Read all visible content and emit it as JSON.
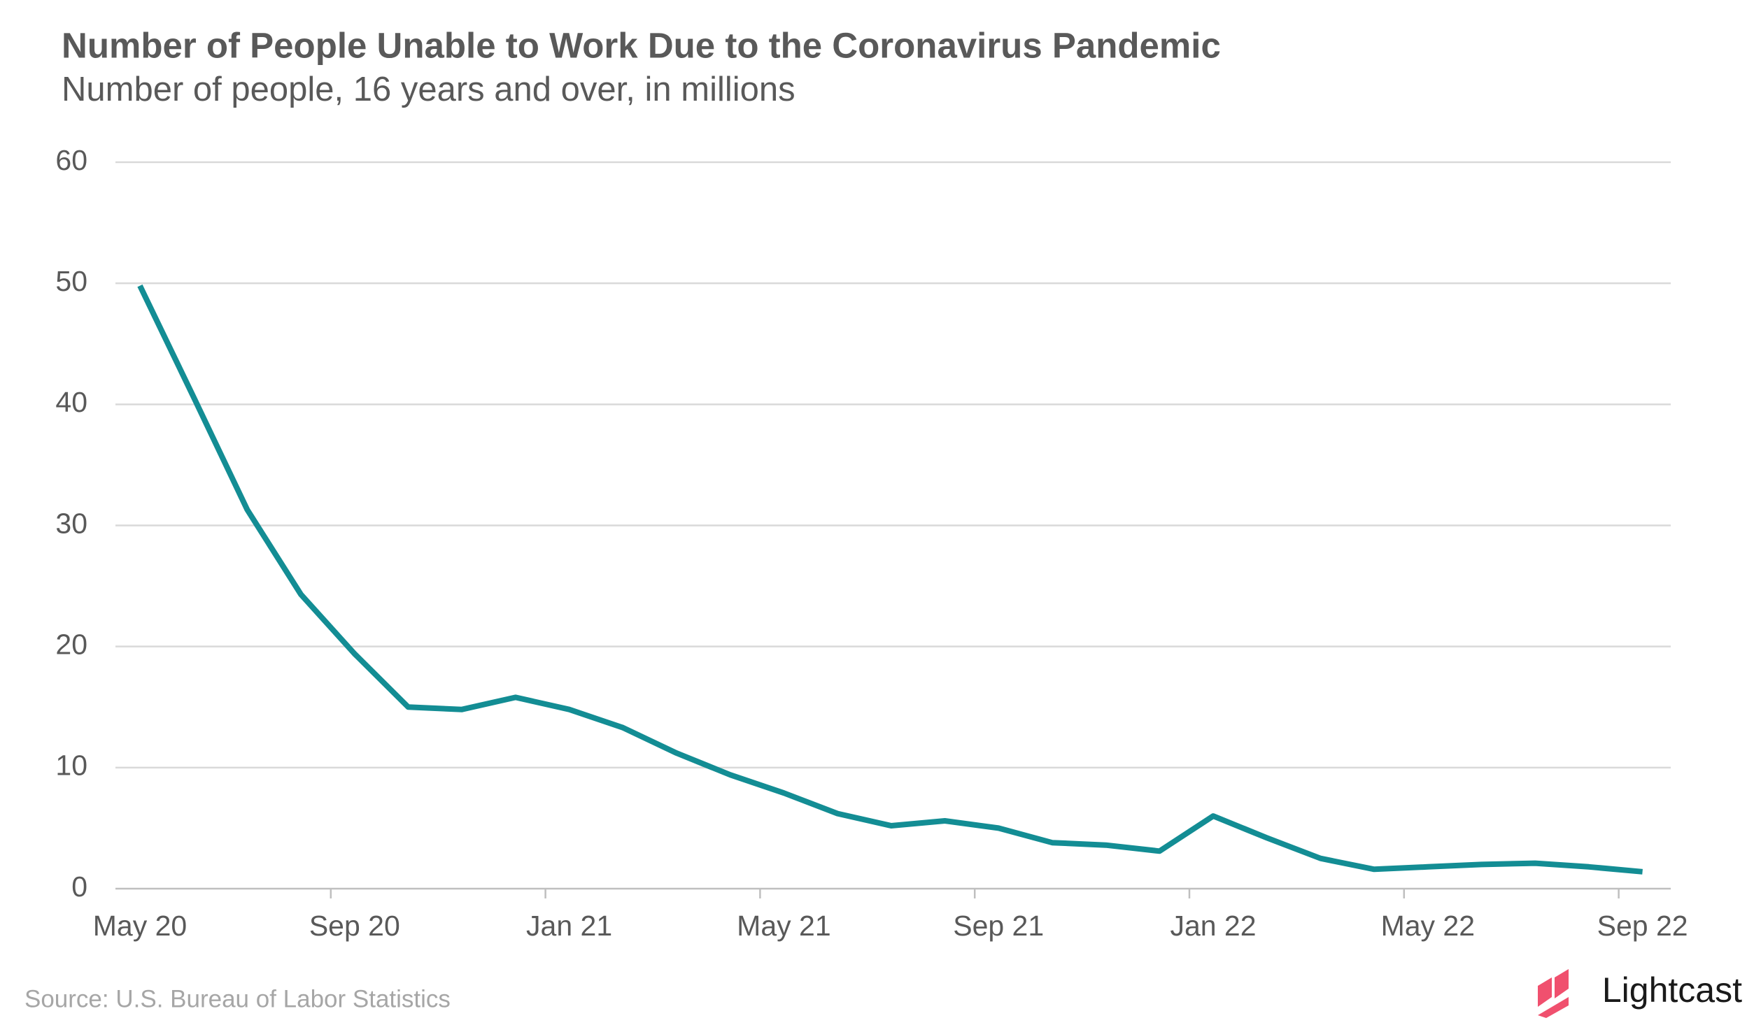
{
  "chart_data": {
    "type": "line",
    "title": "Number of People Unable to Work Due to the Coronavirus Pandemic",
    "subtitle": "Number of people, 16 years and over, in millions",
    "source": "Source:  U.S. Bureau of Labor Statistics",
    "brand": "Lightcast",
    "categories": [
      "May 20",
      null,
      null,
      null,
      "Sep 20",
      null,
      null,
      null,
      "Jan 21",
      null,
      null,
      null,
      "May 21",
      null,
      null,
      null,
      "Sep 21",
      null,
      null,
      null,
      "Jan 22",
      null,
      null,
      null,
      "May 22",
      null,
      null,
      null,
      "Sep 22"
    ],
    "series": [
      {
        "name": "Unable to work",
        "color": "#138d94",
        "values": [
          49.8,
          40.6,
          31.3,
          24.3,
          19.4,
          15.0,
          14.8,
          15.8,
          14.8,
          13.3,
          11.2,
          9.4,
          7.9,
          6.2,
          5.2,
          5.6,
          5.0,
          3.8,
          3.6,
          3.1,
          6.0,
          4.2,
          2.5,
          1.6,
          1.8,
          2.0,
          2.1,
          1.8,
          1.4
        ]
      }
    ],
    "ylim": [
      0,
      60
    ],
    "yticks": [
      0,
      10,
      20,
      30,
      40,
      50,
      60
    ],
    "grid": true
  }
}
